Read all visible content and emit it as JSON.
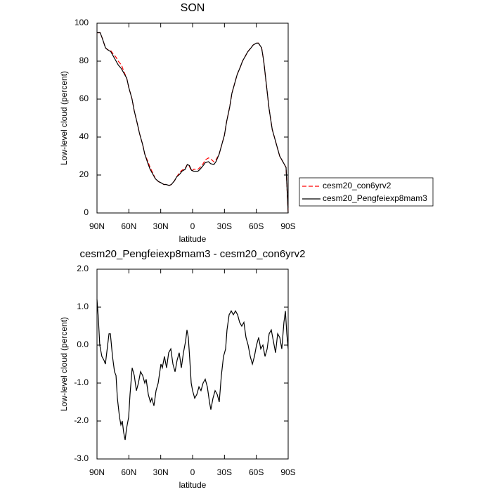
{
  "chart_data": [
    {
      "type": "line",
      "title": "SON",
      "xlabel": "latitude",
      "ylabel": "Low-level cloud (percent)",
      "xlim": [
        90,
        -90
      ],
      "ylim": [
        0,
        100
      ],
      "xticks": [
        {
          "value": 90,
          "label": "90N"
        },
        {
          "value": 60,
          "label": "60N"
        },
        {
          "value": 30,
          "label": "30N"
        },
        0,
        {
          "value": -30,
          "label": "30S"
        },
        {
          "value": -60,
          "label": "60S"
        },
        {
          "value": -90,
          "label": "90S"
        }
      ],
      "yticks": [
        0,
        20,
        40,
        60,
        80,
        100
      ],
      "legend": "right",
      "x": [
        90,
        87,
        85,
        82,
        80,
        77,
        75,
        72,
        70,
        67,
        65,
        62,
        60,
        57,
        55,
        52,
        50,
        47,
        45,
        42,
        40,
        37,
        35,
        32,
        30,
        27,
        25,
        22,
        20,
        17,
        15,
        12,
        10,
        7,
        5,
        3,
        1,
        -1,
        -3,
        -5,
        -7,
        -10,
        -12,
        -15,
        -17,
        -20,
        -22,
        -25,
        -27,
        -30,
        -32,
        -35,
        -37,
        -40,
        -42,
        -45,
        -47,
        -50,
        -52,
        -55,
        -57,
        -60,
        -62,
        -65,
        -67,
        -70,
        -72,
        -75,
        -77,
        -80,
        -82,
        -85,
        -87,
        -88,
        -89,
        -90
      ],
      "series": [
        {
          "name": "cesm20_con6yrv2",
          "color": "#ff0000",
          "line_style": "dashed",
          "values": [
            95,
            95,
            92,
            87,
            86,
            85.5,
            84,
            82,
            80,
            78,
            75,
            71,
            66,
            60,
            54,
            47,
            42,
            36,
            31,
            27,
            24,
            20.5,
            18,
            16.5,
            16,
            15,
            15,
            14.5,
            15,
            17,
            19,
            21.5,
            22.5,
            23.5,
            25.5,
            24.5,
            22,
            23,
            23,
            23,
            24,
            26,
            28,
            29,
            28.5,
            27,
            28,
            31,
            35,
            41,
            48,
            56,
            63,
            69,
            73,
            77,
            80,
            83,
            85,
            87,
            88.5,
            89.5,
            89.5,
            87,
            80,
            65,
            55,
            44,
            40,
            34,
            30,
            27,
            25,
            24,
            12,
            0
          ]
        },
        {
          "name": "cesm20_Pengfeiexp8mam3",
          "color": "#000000",
          "line_style": "solid",
          "values": [
            95,
            95,
            92,
            87,
            86,
            85,
            83,
            80,
            78,
            76,
            74,
            71,
            66,
            60,
            54,
            47,
            42,
            36,
            31,
            26,
            23,
            20,
            18,
            16.5,
            16,
            15,
            15,
            14.5,
            15,
            17,
            19,
            20.5,
            22,
            23,
            25.5,
            25,
            22.5,
            22,
            22,
            22,
            23,
            25,
            26.5,
            27,
            26,
            25.5,
            27,
            31,
            35,
            41,
            48,
            56,
            63,
            69,
            73,
            77,
            80,
            83,
            85,
            87,
            88.5,
            89.5,
            89.5,
            87,
            80,
            65,
            55,
            44,
            40,
            34,
            30,
            27,
            25,
            24,
            12,
            0
          ]
        }
      ]
    },
    {
      "type": "line",
      "title": "cesm20_Pengfeiexp8mam3 - cesm20_con6yrv2",
      "xlabel": "latitude",
      "ylabel": "Low-level cloud (percent)",
      "xlim": [
        90,
        -90
      ],
      "ylim": [
        -3,
        2
      ],
      "xticks": [
        {
          "value": 90,
          "label": "90N"
        },
        {
          "value": 60,
          "label": "60N"
        },
        {
          "value": 30,
          "label": "30N"
        },
        0,
        {
          "value": -30,
          "label": "30S"
        },
        {
          "value": -60,
          "label": "60S"
        },
        {
          "value": -90,
          "label": "90S"
        }
      ],
      "yticks": [
        {
          "value": -3,
          "label": "-3.0"
        },
        {
          "value": -2,
          "label": "-2.0"
        },
        {
          "value": -1,
          "label": "-1.0"
        },
        {
          "value": 0,
          "label": "0.0"
        },
        {
          "value": 1,
          "label": "1.0"
        },
        {
          "value": 2,
          "label": "2.0"
        }
      ],
      "x": [
        90,
        88.7,
        87.4,
        85.4,
        83.4,
        82.1,
        78.7,
        77.4,
        75.4,
        73.5,
        72.1,
        70.8,
        68.8,
        67.5,
        66.2,
        64.9,
        63.5,
        62.2,
        60.2,
        58.9,
        56.9,
        54.9,
        52.9,
        51.0,
        49.0,
        47.0,
        45.0,
        43.7,
        41.7,
        39.7,
        38.4,
        36.4,
        34.4,
        32.4,
        29.8,
        28.5,
        26.5,
        24.5,
        22.5,
        20.5,
        18.5,
        16.5,
        14.6,
        12.6,
        10.6,
        8.6,
        6.6,
        5.3,
        4.0,
        2.6,
        1.3,
        0,
        -2.0,
        -4.0,
        -6.0,
        -7.9,
        -9.9,
        -11.9,
        -13.9,
        -15.9,
        -17.2,
        -19.2,
        -21.2,
        -23.2,
        -25.1,
        -27.1,
        -29.1,
        -31.1,
        -32.4,
        -34.4,
        -36.4,
        -38.4,
        -40.4,
        -42.4,
        -44.3,
        -46.3,
        -48.3,
        -50.3,
        -52.3,
        -54.3,
        -56.3,
        -58.2,
        -60.2,
        -62.2,
        -64.2,
        -66.2,
        -68.2,
        -70.2,
        -72.1,
        -74.1,
        -76.1,
        -78.1,
        -80.1,
        -82.1,
        -84.0,
        -86.0,
        -87.4,
        -88.7,
        -90
      ],
      "series": [
        {
          "name": "cesm20_Pengfeiexp8mam3 - cesm20_con6yrv2",
          "color": "#000000",
          "line_style": "solid",
          "values": [
            1.2,
            0.7,
            0.0,
            -0.3,
            -0.4,
            -0.5,
            0.3,
            0.3,
            -0.3,
            -0.7,
            -0.8,
            -1.4,
            -1.9,
            -2.1,
            -2.0,
            -2.3,
            -2.5,
            -2.2,
            -1.9,
            -1.3,
            -0.6,
            -0.8,
            -1.2,
            -1.0,
            -0.7,
            -0.8,
            -1.0,
            -0.9,
            -1.3,
            -1.5,
            -1.4,
            -1.6,
            -1.2,
            -1.0,
            -0.5,
            -0.6,
            -0.3,
            -0.6,
            -0.2,
            -0.1,
            -0.5,
            -0.7,
            -0.4,
            -0.2,
            -0.6,
            -0.2,
            0.1,
            0.4,
            0.2,
            -0.4,
            -1.0,
            -1.2,
            -1.4,
            -1.3,
            -1.1,
            -1.2,
            -1.0,
            -0.9,
            -1.1,
            -1.5,
            -1.7,
            -1.4,
            -1.2,
            -1.3,
            -1.5,
            -0.8,
            -0.3,
            -0.1,
            0.4,
            0.8,
            0.9,
            0.8,
            0.9,
            0.8,
            0.6,
            0.5,
            0.6,
            0.2,
            0.0,
            -0.3,
            -0.5,
            -0.3,
            0.0,
            0.2,
            -0.1,
            0.0,
            -0.3,
            -0.1,
            0.3,
            0.4,
            0.1,
            -0.2,
            0.3,
            0.2,
            -0.1,
            0.6,
            0.9,
            0.3,
            -0.1
          ]
        }
      ]
    }
  ]
}
